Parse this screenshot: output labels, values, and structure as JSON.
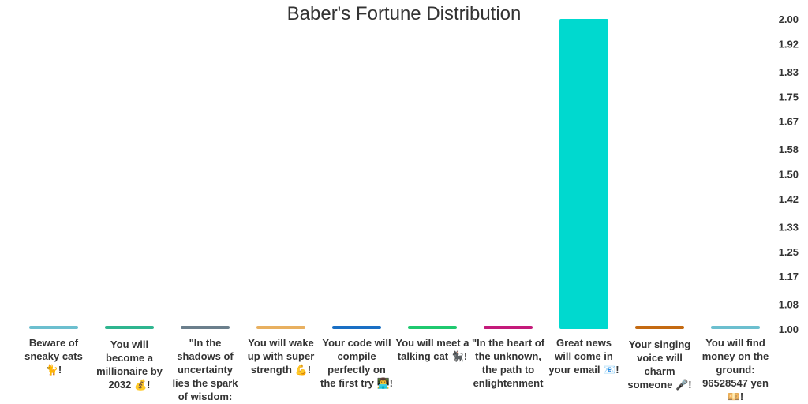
{
  "chart_data": {
    "type": "bar",
    "title": "Baber's Fortune Distribution",
    "xlabel": "",
    "ylabel": "",
    "ylim": [
      1.0,
      2.0
    ],
    "y_axis_position": "right",
    "y_ticks": [
      "2.00",
      "1.92",
      "1.83",
      "1.75",
      "1.67",
      "1.58",
      "1.50",
      "1.42",
      "1.33",
      "1.25",
      "1.17",
      "1.08",
      "1.00"
    ],
    "categories": [
      "Beware of sneaky cats 🐈!",
      "You will become a millionaire by 2032 💰!",
      "\"In the shadows of uncertainty lies the spark of wisdom:",
      "You will wake up with super strength 💪!",
      "Your code will compile perfectly on the first try 👨‍💻!",
      "You will meet a talking cat 🐈‍⬛!",
      "\"In the heart of the unknown, the path to enlightenment",
      "Great news will come in your email 📧!",
      "Your singing voice will charm someone 🎤!",
      "You will find money on the ground: 96528547 yen 💴!"
    ],
    "values": [
      1,
      1,
      1,
      1,
      1,
      1,
      1,
      2,
      1,
      1
    ],
    "colors": [
      "#6cbfcf",
      "#2fb58f",
      "#6b7f8c",
      "#e8b060",
      "#1a6fc4",
      "#1fc96f",
      "#c41a7a",
      "#00d9cf",
      "#c46a12",
      "#6cbfcf"
    ],
    "grid": false,
    "legend": "none"
  }
}
